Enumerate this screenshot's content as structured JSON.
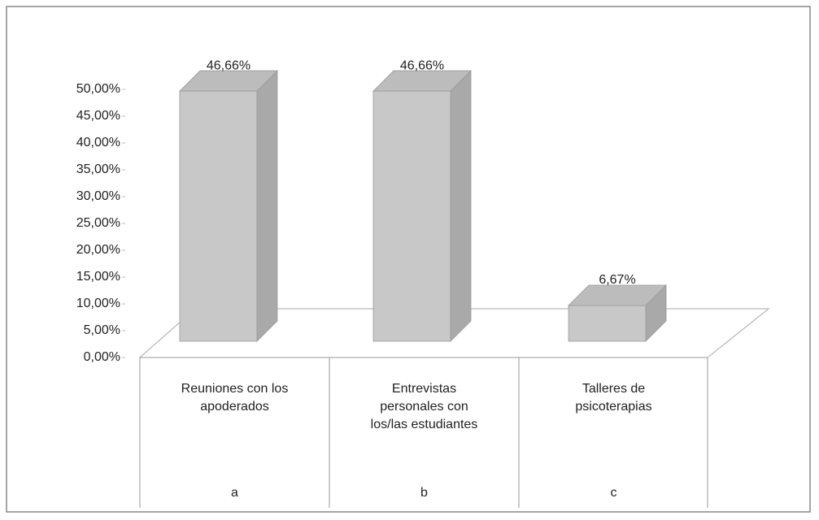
{
  "chart_data": {
    "type": "bar3d",
    "categories": [
      "Reuniones con los apoderados",
      "Entrevistas personales con los/las estudiantes",
      "Talleres de psicoterapias"
    ],
    "category_codes": [
      "a",
      "b",
      "c"
    ],
    "values": [
      46.66,
      46.66,
      6.67
    ],
    "value_labels": [
      "46,66%",
      "46,66%",
      "6,67%"
    ],
    "color": "#c8c8c8",
    "ylim": [
      0,
      50
    ],
    "yticks": [
      {
        "value": 0,
        "label": "0,00%"
      },
      {
        "value": 5,
        "label": "5,00%"
      },
      {
        "value": 10,
        "label": "10,00%"
      },
      {
        "value": 15,
        "label": "15,00%"
      },
      {
        "value": 20,
        "label": "20,00%"
      },
      {
        "value": 25,
        "label": "25,00%"
      },
      {
        "value": 30,
        "label": "30,00%"
      },
      {
        "value": 35,
        "label": "35,00%"
      },
      {
        "value": 40,
        "label": "40,00%"
      },
      {
        "value": 45,
        "label": "45,00%"
      },
      {
        "value": 50,
        "label": "50,00%"
      }
    ],
    "grid": false
  }
}
